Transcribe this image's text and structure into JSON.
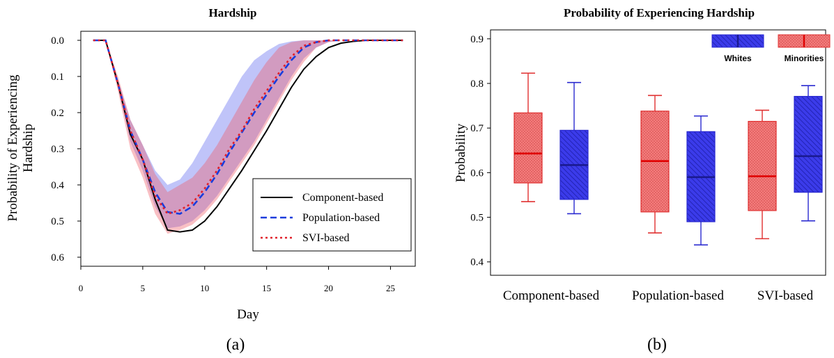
{
  "chart_data": [
    {
      "type": "line",
      "title": "Hardship",
      "xlabel": "Day",
      "ylabel": "Probability of Experiencing Hardship",
      "xlim": [
        0,
        27
      ],
      "ylim": [
        0.625,
        -0.025
      ],
      "inverted_y": true,
      "xticks": [
        0,
        5,
        10,
        15,
        20,
        25
      ],
      "yticks": [
        0.0,
        0.1,
        0.2,
        0.3,
        0.4,
        0.5,
        0.6
      ],
      "xtick_labels": [
        "0",
        "5",
        "10",
        "15",
        "20",
        "25"
      ],
      "ytick_labels": [
        "0.0",
        "0.1",
        "0.2",
        "0.3",
        "0.4",
        "0.5",
        "0.6"
      ],
      "grid": false,
      "legend_position": "bottom-right",
      "panel_label": "(a)",
      "x": [
        1,
        2,
        3,
        4,
        5,
        6,
        7,
        8,
        9,
        10,
        11,
        12,
        13,
        14,
        15,
        16,
        17,
        18,
        19,
        20,
        21,
        22,
        23,
        24,
        25,
        26
      ],
      "series": [
        {
          "name": "Component-based",
          "color": "#000000",
          "style": "solid",
          "values": [
            0.0,
            0.0,
            0.12,
            0.26,
            0.33,
            0.44,
            0.525,
            0.53,
            0.525,
            0.5,
            0.46,
            0.41,
            0.36,
            0.305,
            0.25,
            0.19,
            0.13,
            0.08,
            0.045,
            0.02,
            0.008,
            0.003,
            0.0,
            0.0,
            0.0,
            0.0
          ]
        },
        {
          "name": "Population-based",
          "color": "#1a3cdc",
          "style": "dashed",
          "values": [
            0.0,
            0.0,
            0.12,
            0.25,
            0.33,
            0.42,
            0.475,
            0.48,
            0.46,
            0.42,
            0.37,
            0.31,
            0.255,
            0.2,
            0.15,
            0.1,
            0.055,
            0.02,
            0.005,
            0.0,
            0.0,
            0.0,
            0.0,
            0.0,
            0.0,
            0.0
          ],
          "band_upper": [
            0.0,
            0.0,
            0.11,
            0.22,
            0.29,
            0.36,
            0.4,
            0.385,
            0.34,
            0.28,
            0.22,
            0.16,
            0.1,
            0.055,
            0.03,
            0.01,
            0.003,
            0.0,
            0.0,
            0.0,
            0.0,
            0.0,
            0.0,
            0.0,
            0.0,
            0.0
          ],
          "band_lower": [
            0.0,
            0.0,
            0.13,
            0.28,
            0.36,
            0.46,
            0.52,
            0.515,
            0.5,
            0.47,
            0.43,
            0.38,
            0.33,
            0.28,
            0.22,
            0.16,
            0.1,
            0.05,
            0.02,
            0.005,
            0.0,
            0.0,
            0.0,
            0.0,
            0.0,
            0.0
          ]
        },
        {
          "name": "SVI-based",
          "color": "#e0202c",
          "style": "dotted",
          "values": [
            0.0,
            0.0,
            0.12,
            0.25,
            0.33,
            0.43,
            0.48,
            0.47,
            0.45,
            0.41,
            0.36,
            0.3,
            0.25,
            0.19,
            0.14,
            0.09,
            0.045,
            0.015,
            0.005,
            0.0,
            0.0,
            0.0,
            0.0,
            0.0,
            0.0,
            0.0
          ],
          "band_upper": [
            0.0,
            0.0,
            0.1,
            0.22,
            0.29,
            0.37,
            0.42,
            0.4,
            0.38,
            0.34,
            0.29,
            0.23,
            0.17,
            0.11,
            0.06,
            0.02,
            0.005,
            0.0,
            0.0,
            0.0,
            0.0,
            0.0,
            0.0,
            0.0,
            0.0,
            0.0
          ],
          "band_lower": [
            0.0,
            0.0,
            0.14,
            0.3,
            0.38,
            0.48,
            0.535,
            0.525,
            0.51,
            0.48,
            0.44,
            0.39,
            0.34,
            0.29,
            0.23,
            0.17,
            0.11,
            0.06,
            0.02,
            0.005,
            0.0,
            0.0,
            0.0,
            0.0,
            0.0,
            0.0
          ]
        }
      ]
    },
    {
      "type": "box",
      "title": "Probability  of Experiencing Hardship",
      "xlabel": "",
      "ylabel": "Probability",
      "ylim": [
        0.37,
        0.92
      ],
      "yticks": [
        0.4,
        0.5,
        0.6,
        0.7,
        0.8,
        0.9
      ],
      "ytick_labels": [
        "0.4",
        "0.5",
        "0.6",
        "0.7",
        "0.8",
        "0.9"
      ],
      "categories": [
        "Component-based",
        "Population-based",
        "SVI-based"
      ],
      "grid": false,
      "legend_position": "top-right",
      "panel_label": "(b)",
      "series": [
        {
          "name": "Minorities",
          "fill": "#f47c7c",
          "edge": "#e03030",
          "median_color": "#e00000",
          "pattern": "dots",
          "boxes": [
            {
              "min": 0.535,
              "q1": 0.577,
              "median": 0.643,
              "q3": 0.734,
              "max": 0.823
            },
            {
              "min": 0.465,
              "q1": 0.512,
              "median": 0.626,
              "q3": 0.738,
              "max": 0.773
            },
            {
              "min": 0.452,
              "q1": 0.515,
              "median": 0.592,
              "q3": 0.715,
              "max": 0.74
            }
          ]
        },
        {
          "name": "Whites",
          "fill": "#3b3bea",
          "edge": "#2a2ad0",
          "median_color": "#1a1a90",
          "pattern": "diagonal",
          "boxes": [
            {
              "min": 0.508,
              "q1": 0.54,
              "median": 0.617,
              "q3": 0.695,
              "max": 0.802
            },
            {
              "min": 0.438,
              "q1": 0.49,
              "median": 0.59,
              "q3": 0.692,
              "max": 0.727
            },
            {
              "min": 0.492,
              "q1": 0.556,
              "median": 0.637,
              "q3": 0.771,
              "max": 0.795
            }
          ]
        }
      ]
    }
  ]
}
